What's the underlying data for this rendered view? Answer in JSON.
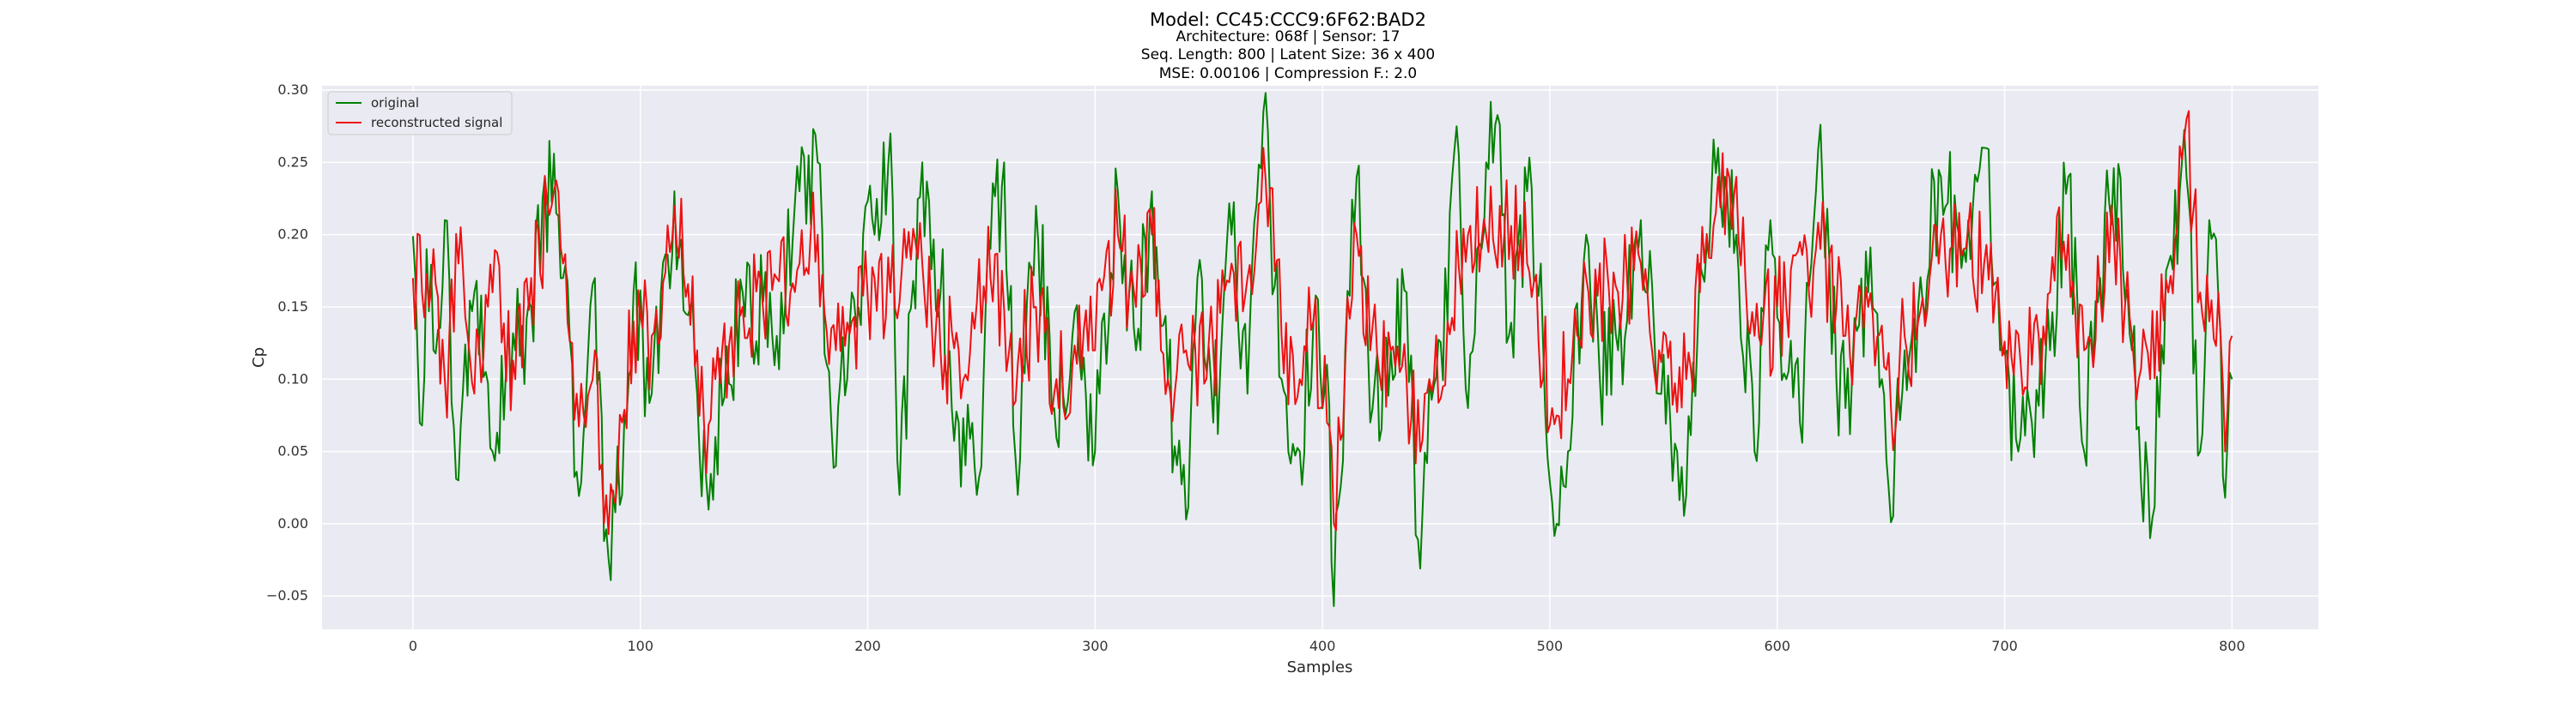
{
  "title": "Model: CC45:CCC9:6F62:BAD2",
  "subtitle_lines": [
    "Architecture: 068f | Sensor: 17",
    "Seq. Length: 800 | Latent Size: 36 x 400",
    "MSE: 0.00106 | Compression F.: 2.0"
  ],
  "colors": {
    "original": "#008000",
    "reconstructed": "#ee1111",
    "plot_bg": "#eaeaf2",
    "grid": "#ffffff"
  },
  "chart_data": {
    "type": "line",
    "title": "Model: CC45:CCC9:6F62:BAD2",
    "xlabel": "Samples",
    "ylabel": "Cp",
    "xlim": [
      -40,
      838
    ],
    "ylim": [
      -0.073,
      0.303
    ],
    "xticks": [
      0,
      100,
      200,
      300,
      400,
      500,
      600,
      700,
      800
    ],
    "yticks": [
      -0.05,
      0.0,
      0.05,
      0.1,
      0.15,
      0.2,
      0.25,
      0.3
    ],
    "xtick_labels": [
      "0",
      "100",
      "200",
      "300",
      "400",
      "500",
      "600",
      "700",
      "800"
    ],
    "ytick_labels": [
      "−0.05",
      "0.00",
      "0.05",
      "0.10",
      "0.15",
      "0.20",
      "0.25",
      "0.30"
    ],
    "grid": true,
    "legend_position": "top-left",
    "x_start": 0,
    "x_end": 800,
    "n_points": 801,
    "series": [
      {
        "name": "original",
        "anchors": [
          [
            0,
            0.199
          ],
          [
            2,
            0.12
          ],
          [
            4,
            0.068
          ],
          [
            6,
            0.19
          ],
          [
            9,
            0.12
          ],
          [
            14,
            0.21
          ],
          [
            20,
            0.03
          ],
          [
            27,
            0.16
          ],
          [
            35,
            0.05
          ],
          [
            45,
            0.12
          ],
          [
            52,
            0.15
          ],
          [
            62,
            0.256
          ],
          [
            66,
            0.17
          ],
          [
            72,
            0.036
          ],
          [
            80,
            0.17
          ],
          [
            84,
            -0.012
          ],
          [
            92,
            0.02
          ],
          [
            97,
            0.16
          ],
          [
            105,
            0.09
          ],
          [
            115,
            0.23
          ],
          [
            125,
            0.09
          ],
          [
            129,
            0.03
          ],
          [
            133,
            0.06
          ],
          [
            145,
            0.16
          ],
          [
            160,
            0.13
          ],
          [
            170,
            0.23
          ],
          [
            178,
            0.25
          ],
          [
            182,
            0.11
          ],
          [
            186,
            0.04
          ],
          [
            193,
            0.16
          ],
          [
            203,
            0.2
          ],
          [
            210,
            0.27
          ],
          [
            214,
            0.02
          ],
          [
            224,
            0.25
          ],
          [
            232,
            0.16
          ],
          [
            240,
            0.07
          ],
          [
            248,
            0.02
          ],
          [
            254,
            0.19
          ],
          [
            260,
            0.25
          ],
          [
            266,
            0.02
          ],
          [
            274,
            0.22
          ],
          [
            282,
            0.08
          ],
          [
            290,
            0.13
          ],
          [
            300,
            0.05
          ],
          [
            310,
            0.23
          ],
          [
            318,
            0.12
          ],
          [
            325,
            0.23
          ],
          [
            332,
            0.1
          ],
          [
            340,
            0.003
          ],
          [
            345,
            0.17
          ],
          [
            352,
            0.07
          ],
          [
            360,
            0.2
          ],
          [
            367,
            0.09
          ],
          [
            374,
            0.285
          ],
          [
            382,
            0.1
          ],
          [
            390,
            0.05
          ],
          [
            396,
            0.14
          ],
          [
            402,
            0.11
          ],
          [
            405,
            -0.057
          ],
          [
            410,
            0.12
          ],
          [
            415,
            0.24
          ],
          [
            421,
            0.07
          ],
          [
            430,
            0.12
          ],
          [
            437,
            0.16
          ],
          [
            443,
            -0.031
          ],
          [
            447,
            0.1
          ],
          [
            455,
            0.14
          ],
          [
            459,
            0.275
          ],
          [
            464,
            0.08
          ],
          [
            472,
            0.25
          ],
          [
            478,
            0.276
          ],
          [
            482,
            0.13
          ],
          [
            490,
            0.23
          ],
          [
            496,
            0.18
          ],
          [
            501,
            0.015
          ],
          [
            508,
            0.05
          ],
          [
            516,
            0.2
          ],
          [
            522,
            0.1
          ],
          [
            530,
            0.12
          ],
          [
            540,
            0.21
          ],
          [
            548,
            0.09
          ],
          [
            556,
            0.05
          ],
          [
            560,
            0.02
          ],
          [
            566,
            0.18
          ],
          [
            574,
            0.26
          ],
          [
            582,
            0.2
          ],
          [
            590,
            0.05
          ],
          [
            597,
            0.21
          ],
          [
            604,
            0.1
          ],
          [
            610,
            0.07
          ],
          [
            619,
            0.276
          ],
          [
            626,
            0.1
          ],
          [
            630,
            0.08
          ],
          [
            640,
            0.16
          ],
          [
            646,
            0.1
          ],
          [
            650,
            0.001
          ],
          [
            656,
            0.12
          ],
          [
            662,
            0.15
          ],
          [
            672,
            0.24
          ],
          [
            682,
            0.19
          ],
          [
            691,
            0.26
          ],
          [
            698,
            0.12
          ],
          [
            706,
            0.05
          ],
          [
            712,
            0.07
          ],
          [
            720,
            0.12
          ],
          [
            728,
            0.24
          ],
          [
            735,
            0.05
          ],
          [
            742,
            0.17
          ],
          [
            748,
            0.246
          ],
          [
            756,
            0.12
          ],
          [
            764,
            -0.01
          ],
          [
            772,
            0.18
          ],
          [
            780,
            0.24
          ],
          [
            786,
            0.05
          ],
          [
            790,
            0.21
          ],
          [
            795,
            0.13
          ],
          [
            797,
            0.018
          ],
          [
            800,
            0.1
          ]
        ],
        "amplitude": 0.042
      },
      {
        "name": "reconstructed signal",
        "anchors": [
          [
            0,
            0.17
          ],
          [
            4,
            0.16
          ],
          [
            9,
            0.19
          ],
          [
            14,
            0.1
          ],
          [
            20,
            0.18
          ],
          [
            27,
            0.09
          ],
          [
            35,
            0.16
          ],
          [
            45,
            0.1
          ],
          [
            52,
            0.17
          ],
          [
            62,
            0.23
          ],
          [
            66,
            0.18
          ],
          [
            72,
            0.09
          ],
          [
            80,
            0.12
          ],
          [
            84,
            0.0
          ],
          [
            92,
            0.07
          ],
          [
            97,
            0.14
          ],
          [
            105,
            0.13
          ],
          [
            115,
            0.22
          ],
          [
            125,
            0.12
          ],
          [
            129,
            0.035
          ],
          [
            133,
            0.1
          ],
          [
            145,
            0.15
          ],
          [
            160,
            0.17
          ],
          [
            170,
            0.18
          ],
          [
            178,
            0.2
          ],
          [
            186,
            0.12
          ],
          [
            193,
            0.14
          ],
          [
            203,
            0.17
          ],
          [
            210,
            0.16
          ],
          [
            224,
            0.18
          ],
          [
            232,
            0.12
          ],
          [
            240,
            0.12
          ],
          [
            254,
            0.17
          ],
          [
            266,
            0.11
          ],
          [
            274,
            0.15
          ],
          [
            282,
            0.09
          ],
          [
            290,
            0.11
          ],
          [
            300,
            0.12
          ],
          [
            310,
            0.2
          ],
          [
            318,
            0.15
          ],
          [
            325,
            0.2
          ],
          [
            332,
            0.1
          ],
          [
            340,
            0.12
          ],
          [
            352,
            0.12
          ],
          [
            360,
            0.18
          ],
          [
            367,
            0.17
          ],
          [
            374,
            0.26
          ],
          [
            382,
            0.13
          ],
          [
            390,
            0.1
          ],
          [
            396,
            0.14
          ],
          [
            402,
            0.07
          ],
          [
            405,
            0.0
          ],
          [
            410,
            0.11
          ],
          [
            415,
            0.2
          ],
          [
            421,
            0.12
          ],
          [
            430,
            0.12
          ],
          [
            437,
            0.1
          ],
          [
            443,
            0.05
          ],
          [
            447,
            0.1
          ],
          [
            455,
            0.14
          ],
          [
            464,
            0.2
          ],
          [
            472,
            0.2
          ],
          [
            478,
            0.22
          ],
          [
            490,
            0.18
          ],
          [
            501,
            0.08
          ],
          [
            508,
            0.1
          ],
          [
            516,
            0.17
          ],
          [
            530,
            0.16
          ],
          [
            540,
            0.18
          ],
          [
            548,
            0.12
          ],
          [
            560,
            0.1
          ],
          [
            566,
            0.16
          ],
          [
            574,
            0.24
          ],
          [
            582,
            0.24
          ],
          [
            590,
            0.13
          ],
          [
            604,
            0.15
          ],
          [
            619,
            0.19
          ],
          [
            630,
            0.13
          ],
          [
            640,
            0.15
          ],
          [
            650,
            0.08
          ],
          [
            656,
            0.13
          ],
          [
            662,
            0.14
          ],
          [
            672,
            0.2
          ],
          [
            682,
            0.19
          ],
          [
            691,
            0.18
          ],
          [
            698,
            0.14
          ],
          [
            712,
            0.11
          ],
          [
            720,
            0.16
          ],
          [
            728,
            0.2
          ],
          [
            735,
            0.12
          ],
          [
            742,
            0.16
          ],
          [
            748,
            0.2
          ],
          [
            756,
            0.13
          ],
          [
            764,
            0.1
          ],
          [
            772,
            0.16
          ],
          [
            780,
            0.28
          ],
          [
            786,
            0.16
          ],
          [
            790,
            0.14
          ],
          [
            795,
            0.13
          ],
          [
            797,
            0.05
          ],
          [
            800,
            0.13
          ]
        ],
        "amplitude": 0.04
      }
    ]
  }
}
